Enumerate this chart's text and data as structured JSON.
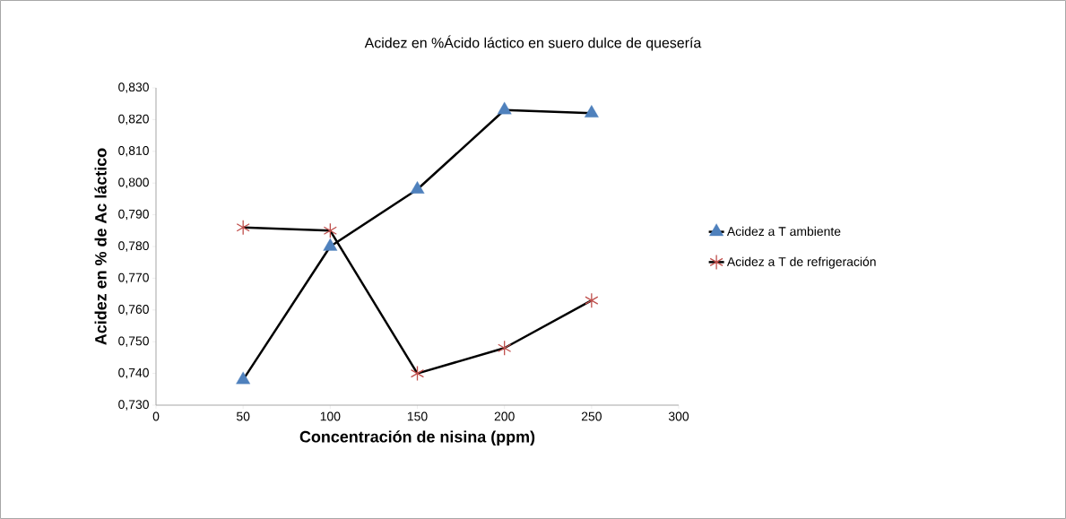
{
  "chart_data": {
    "type": "line",
    "title": "Acidez  en %Ácido láctico  en suero dulce  de quesería",
    "xlabel": "Concentración  de nisina (ppm)",
    "ylabel": "Acidez en % de Ac láctico",
    "x": [
      50,
      100,
      150,
      200,
      250
    ],
    "series": [
      {
        "name": "Acidez a T ambiente",
        "color": "#4f81bd",
        "marker": "triangle",
        "values": [
          0.738,
          0.78,
          0.798,
          0.823,
          0.822
        ]
      },
      {
        "name": "Acidez a T de refrigeración",
        "color": "#c0504d",
        "marker": "cross",
        "values": [
          0.786,
          0.785,
          0.74,
          0.748,
          0.763
        ]
      }
    ],
    "xlim": [
      0,
      300
    ],
    "xticks": [
      0,
      50,
      100,
      150,
      200,
      250,
      300
    ],
    "ylim": [
      0.73,
      0.83
    ],
    "yticks": [
      {
        "value": 0.73,
        "label": "0,730"
      },
      {
        "value": 0.74,
        "label": "0,740"
      },
      {
        "value": 0.75,
        "label": "0,750"
      },
      {
        "value": 0.76,
        "label": "0,760"
      },
      {
        "value": 0.77,
        "label": "0,770"
      },
      {
        "value": 0.78,
        "label": "0,780"
      },
      {
        "value": 0.79,
        "label": "0,790"
      },
      {
        "value": 0.8,
        "label": "0,800"
      },
      {
        "value": 0.81,
        "label": "0,810"
      },
      {
        "value": 0.82,
        "label": "0,820"
      },
      {
        "value": 0.83,
        "label": "0,830"
      }
    ],
    "grid": false,
    "legend": "right",
    "line_style": "solid"
  }
}
